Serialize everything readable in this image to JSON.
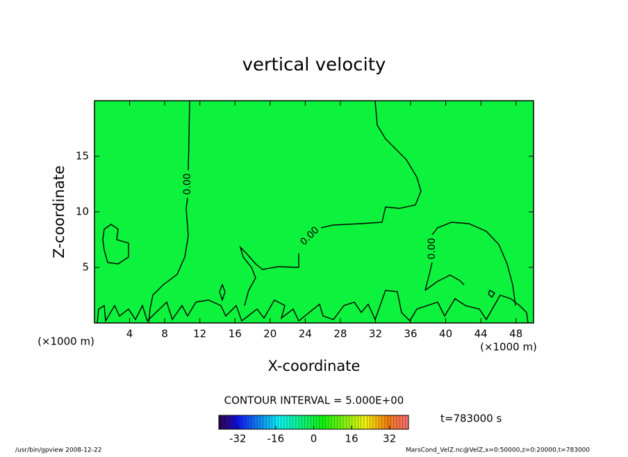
{
  "chart_data": {
    "type": "contour",
    "title": "vertical velocity",
    "xlabel": "X-coordinate",
    "ylabel": "Z-coordinate",
    "x_unit": "(×1000 m)",
    "xlim": [
      0,
      50
    ],
    "xticks": [
      4,
      8,
      12,
      16,
      20,
      24,
      28,
      32,
      36,
      40,
      44,
      48
    ],
    "ylim": [
      0,
      20
    ],
    "yticks": [
      5,
      10,
      15
    ],
    "contours": [
      {
        "value": 0,
        "label": "0.00"
      }
    ],
    "contour_interval": 5,
    "contour_interval_label": "CONTOUR INTERVAL = 5.000E+00",
    "colorbar": {
      "lim": [
        -40,
        40
      ],
      "ticks": [
        -32,
        -16,
        0,
        16,
        32
      ]
    },
    "time_label": "t=783000 s",
    "footer_left": "/usr/bin/gpview  2008-12-22",
    "footer_right": "MarsCond_VelZ.nc@VelZ,x=0:50000,z=0:20000,t=783000"
  }
}
